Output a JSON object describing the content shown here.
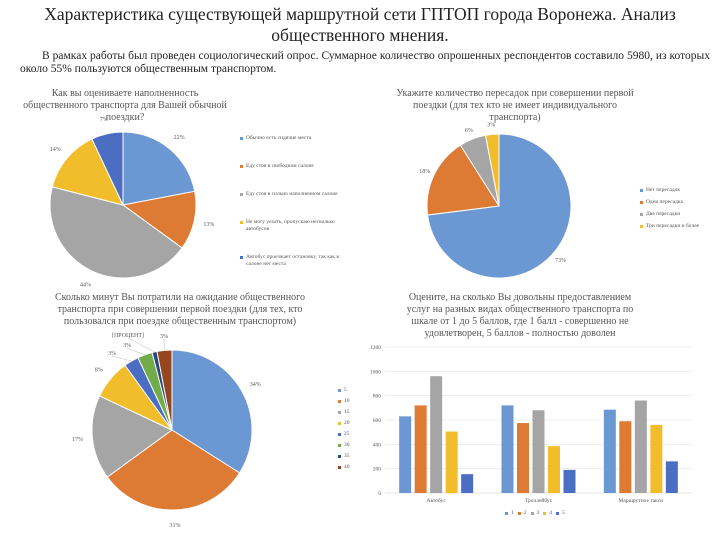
{
  "header": {
    "title": "Характеристика существующей маршрутной сети ГПТОП города Воронежа. Анализ общественного мнения.",
    "intro": "В рамках работы был проведен социологический опрос. Суммарное количество опрошенных респондентов составило 5980, из которых около 55% пользуются общественным транспортом."
  },
  "chart_data": [
    {
      "type": "pie",
      "title": "Как вы оцениваете наполненность общественного транспорта для Вашей обычной поездки?",
      "categories": [
        "Обычно есть сидячие места",
        "Еду стоя в свободном салоне",
        "Еду стоя в сильно наполненном салоне",
        "Не могу уехать, пропускаю несколько автобусов",
        "Автобус проезжает остановку, так как в салоне нет места"
      ],
      "values": [
        22,
        13,
        44,
        14,
        7
      ],
      "labels": [
        "22%",
        "13%",
        "44%",
        "14%",
        "7%"
      ],
      "colors": [
        "#6b97d3",
        "#dd7a33",
        "#a5a5a5",
        "#f2bd2b",
        "#4b6ec2"
      ],
      "legend": "right"
    },
    {
      "type": "pie",
      "title": "Укажите количество пересадок при совершении первой поездки (для тех кто не имеет индивидуального транспорта)",
      "categories": [
        "Нет пересадок",
        "Одна пересадка",
        "Две пересадки",
        "Три пересадки и более"
      ],
      "values": [
        73,
        18,
        6,
        3
      ],
      "labels": [
        "73%",
        "18%",
        "6%",
        "3%"
      ],
      "colors": [
        "#6b97d3",
        "#dd7a33",
        "#a5a5a5",
        "#f2bd2b"
      ],
      "legend": "right"
    },
    {
      "type": "pie",
      "title": "Сколько минут Вы потратили на ожидание общественного транспорта при совершении первой поездки (для тех, кто пользовался при поездке общественным транспортом)",
      "categories": [
        "5",
        "10",
        "15",
        "20",
        "25",
        "30",
        "35",
        "40"
      ],
      "values": [
        34,
        31,
        17,
        8,
        3,
        3,
        1,
        3
      ],
      "labels": [
        "34%",
        "31%",
        "17%",
        "8%",
        "3%",
        "3%",
        "[ПРОЦЕНТ]",
        "3%"
      ],
      "colors": [
        "#6b97d3",
        "#dd7a33",
        "#a5a5a5",
        "#f2bd2b",
        "#4b6ec2",
        "#72ab4a",
        "#2a4780",
        "#94461f"
      ],
      "legend": "right"
    },
    {
      "type": "bar",
      "title": "Оцените, на сколько Вы довольны предоставлением услуг на разных видах общественного транспорта по шкале от 1 до 5 баллов, где 1 балл - совершенно не удовлетворен, 5 баллов - полностью доволен",
      "categories": [
        "Автобус",
        "Троллейбус",
        "Маршрутное такси"
      ],
      "series": [
        {
          "name": "1",
          "values": [
            630,
            720,
            685
          ],
          "color": "#6b97d3"
        },
        {
          "name": "2",
          "values": [
            720,
            575,
            590
          ],
          "color": "#dd7a33"
        },
        {
          "name": "3",
          "values": [
            960,
            680,
            760
          ],
          "color": "#a5a5a5"
        },
        {
          "name": "4",
          "values": [
            505,
            385,
            560
          ],
          "color": "#f2bd2b"
        },
        {
          "name": "5",
          "values": [
            155,
            190,
            260
          ],
          "color": "#4b6ec2"
        }
      ],
      "ylim": [
        0,
        1200
      ],
      "yticks": [
        "0",
        "200",
        "400",
        "600",
        "800",
        "1000",
        "1200"
      ],
      "grid": true,
      "legend": "bottom"
    }
  ]
}
